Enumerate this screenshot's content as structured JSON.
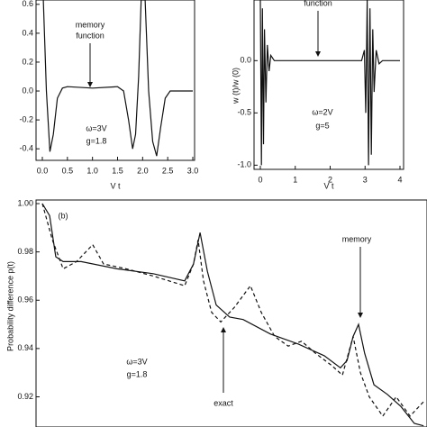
{
  "chart_data": [
    {
      "type": "line",
      "xlabel": "V t",
      "xlim": [
        0,
        3
      ],
      "ylim": [
        -0.48,
        0.63
      ],
      "xticks": [
        {
          "value": 0,
          "label": "0.0"
        },
        0.5,
        {
          "value": 1,
          "label": "1.0"
        },
        1.5,
        {
          "value": 2,
          "label": "2.0"
        },
        2.5,
        {
          "value": 3,
          "label": "3.0"
        }
      ],
      "yticks": [
        0.6,
        0.4,
        0.2,
        {
          "value": 0,
          "label": "0.0"
        },
        -0.2,
        -0.4
      ],
      "series": [
        {
          "color": "#111111",
          "dash": false,
          "x": [
            0.02,
            0.08,
            0.15,
            0.22,
            0.3,
            0.4,
            0.5,
            1.0,
            1.5,
            1.62,
            1.72,
            1.8,
            1.86,
            1.92,
            1.97,
            2.05,
            2.12,
            2.2,
            2.28,
            2.36,
            2.45,
            2.55,
            3.0
          ],
          "values": [
            0.63,
            0.0,
            -0.42,
            -0.3,
            -0.05,
            0.02,
            0.03,
            0.02,
            0.03,
            0.0,
            -0.2,
            -0.4,
            -0.3,
            0.1,
            0.63,
            0.63,
            0.0,
            -0.35,
            -0.45,
            -0.25,
            -0.05,
            0.0,
            0.0
          ]
        }
      ],
      "annotations": [
        {
          "text": "memory"
        },
        {
          "text": "function"
        },
        {
          "text": "ω=3V"
        },
        {
          "text": "g=1.8"
        }
      ]
    },
    {
      "type": "line",
      "xlabel": "V t",
      "ylabel": "w (t)/w (0)",
      "xlim": [
        0,
        4
      ],
      "ylim": [
        -1.04,
        0.58
      ],
      "xticks": [
        0,
        1,
        2,
        3,
        4
      ],
      "yticks": [
        {
          "value": 0,
          "label": "0.0"
        },
        -0.5,
        {
          "value": -1,
          "label": "-1.0"
        }
      ],
      "series": [
        {
          "color": "#111111",
          "dash": false,
          "x": [
            0,
            0.03,
            0.06,
            0.09,
            0.12,
            0.16,
            0.2,
            0.25,
            0.3,
            0.4,
            2.9,
            2.98,
            3.02,
            3.06,
            3.1,
            3.14,
            3.18,
            3.22,
            3.26,
            3.32,
            3.4,
            3.5,
            4.0
          ],
          "values": [
            0.58,
            -1.0,
            0.5,
            -0.8,
            0.3,
            -0.4,
            0.15,
            -0.1,
            0.05,
            0.0,
            0.0,
            0.1,
            -0.5,
            0.58,
            -1.0,
            0.5,
            -0.9,
            0.3,
            -0.3,
            0.1,
            -0.03,
            0.0,
            0.0
          ]
        }
      ],
      "annotations": [
        {
          "text": "function"
        },
        {
          "text": "ω=2V"
        },
        {
          "text": "g=5"
        }
      ]
    },
    {
      "type": "line",
      "ylabel": "Probability  difference  p(t)",
      "xlim": [
        0,
        10
      ],
      "ylim": [
        0.9075,
        1.0015
      ],
      "yticks": [
        {
          "value": 1,
          "label": "1.00"
        },
        0.98,
        0.96,
        0.94,
        0.92
      ],
      "series": [
        {
          "color": "#111111",
          "dash": false,
          "x": [
            0,
            0.19,
            0.35,
            0.54,
            1.01,
            1.94,
            2.88,
            3.7,
            3.93,
            4.1,
            4.29,
            4.52,
            4.87,
            5.22,
            5.93,
            6.63,
            7.33,
            7.75,
            7.92,
            8.08,
            8.22,
            8.38,
            8.62,
            8.97,
            9.32,
            9.67,
            9.91
          ],
          "values": [
            1.0,
            0.995,
            0.978,
            0.976,
            0.976,
            0.973,
            0.971,
            0.968,
            0.975,
            0.988,
            0.972,
            0.958,
            0.953,
            0.952,
            0.946,
            0.942,
            0.937,
            0.932,
            0.935,
            0.945,
            0.95,
            0.938,
            0.925,
            0.921,
            0.916,
            0.909,
            0.908
          ]
        },
        {
          "color": "#111111",
          "dash": true,
          "x": [
            0,
            0.26,
            0.54,
            0.89,
            1.31,
            1.59,
            2.18,
            2.88,
            3.7,
            3.93,
            4.05,
            4.19,
            4.4,
            4.64,
            4.99,
            5.41,
            5.69,
            6.04,
            6.39,
            6.74,
            7.1,
            7.52,
            7.8,
            8.08,
            8.27,
            8.5,
            8.85,
            9.2,
            9.56,
            9.91
          ],
          "values": [
            1.0,
            0.985,
            0.973,
            0.976,
            0.983,
            0.975,
            0.973,
            0.97,
            0.966,
            0.975,
            0.985,
            0.968,
            0.955,
            0.951,
            0.957,
            0.966,
            0.955,
            0.945,
            0.941,
            0.943,
            0.938,
            0.933,
            0.929,
            0.945,
            0.93,
            0.92,
            0.912,
            0.92,
            0.912,
            0.918
          ]
        }
      ],
      "annotations": [
        {
          "text": "(b)"
        },
        {
          "text": "memory"
        },
        {
          "text": "exact"
        },
        {
          "text": "ω=3V"
        },
        {
          "text": "g=1.8"
        }
      ]
    }
  ]
}
